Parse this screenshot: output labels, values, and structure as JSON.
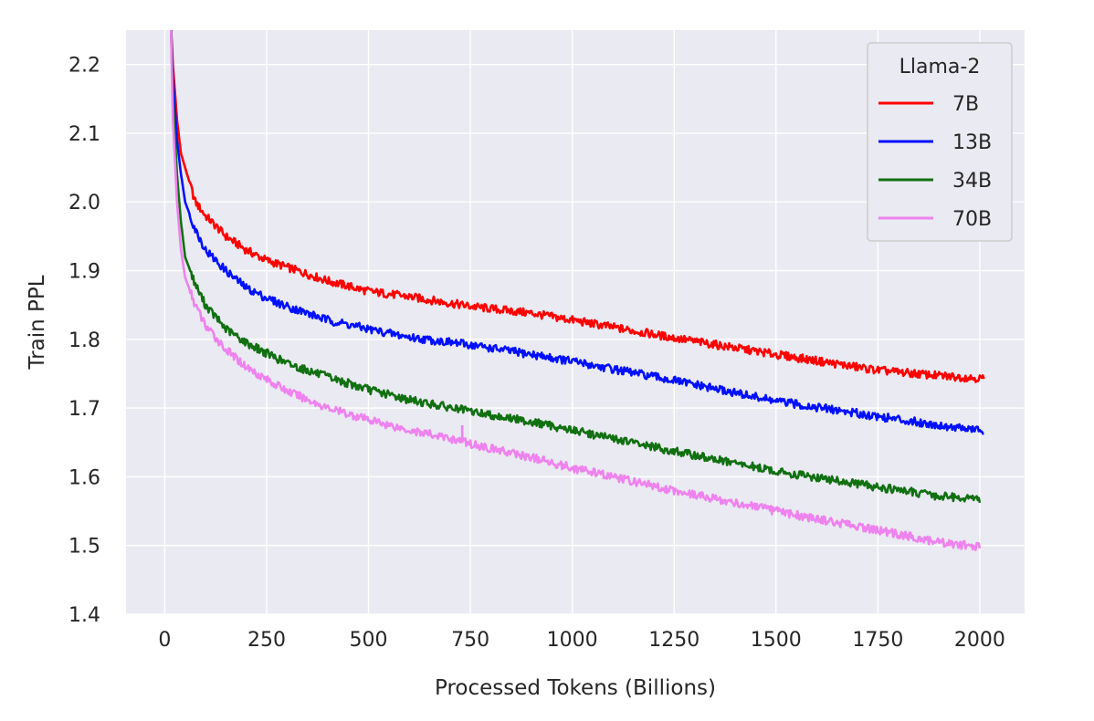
{
  "chart_data": {
    "type": "line",
    "title": "",
    "xlabel": "Processed Tokens (Billions)",
    "ylabel": "Train PPL",
    "xlim": [
      -95,
      2110
    ],
    "ylim": [
      1.4,
      2.25
    ],
    "xticks": [
      0,
      250,
      500,
      750,
      1000,
      1250,
      1500,
      1750,
      2000
    ],
    "yticks": [
      1.4,
      1.5,
      1.6,
      1.7,
      1.8,
      1.9,
      2.0,
      2.1,
      2.2
    ],
    "grid": true,
    "background": "#eaeaf2",
    "legend": {
      "title": "Llama-2",
      "position": "top-right"
    },
    "series": [
      {
        "name": "7B",
        "color": "#ff0000",
        "x": [
          15,
          20,
          30,
          40,
          50,
          75,
          100,
          150,
          200,
          250,
          300,
          400,
          500,
          600,
          750,
          900,
          1000,
          1250,
          1500,
          1750,
          1900,
          2010
        ],
        "y": [
          2.26,
          2.2,
          2.12,
          2.07,
          2.05,
          2.0,
          1.98,
          1.95,
          1.93,
          1.915,
          1.905,
          1.885,
          1.87,
          1.862,
          1.848,
          1.838,
          1.828,
          1.802,
          1.778,
          1.755,
          1.747,
          1.743
        ]
      },
      {
        "name": "13B",
        "color": "#0010ff",
        "x": [
          15,
          20,
          30,
          40,
          50,
          75,
          100,
          150,
          200,
          250,
          300,
          400,
          500,
          600,
          750,
          900,
          1000,
          1250,
          1500,
          1750,
          1900,
          2010
        ],
        "y": [
          2.26,
          2.18,
          2.09,
          2.04,
          2.0,
          1.96,
          1.93,
          1.9,
          1.875,
          1.86,
          1.848,
          1.828,
          1.815,
          1.803,
          1.792,
          1.778,
          1.768,
          1.74,
          1.71,
          1.688,
          1.675,
          1.667
        ]
      },
      {
        "name": "34B",
        "color": "#117011",
        "x": [
          15,
          20,
          30,
          40,
          50,
          75,
          100,
          150,
          200,
          250,
          300,
          400,
          500,
          600,
          750,
          900,
          1000,
          1250,
          1500,
          1750,
          1900,
          2000
        ],
        "y": [
          2.26,
          2.15,
          2.04,
          1.97,
          1.92,
          1.88,
          1.85,
          1.815,
          1.795,
          1.78,
          1.765,
          1.745,
          1.727,
          1.712,
          1.695,
          1.68,
          1.668,
          1.637,
          1.608,
          1.585,
          1.572,
          1.568
        ]
      },
      {
        "name": "70B",
        "color": "#ee82ee",
        "x": [
          15,
          20,
          30,
          40,
          50,
          75,
          100,
          150,
          200,
          250,
          300,
          400,
          500,
          600,
          730,
          750,
          900,
          1000,
          1250,
          1500,
          1750,
          1900,
          2000
        ],
        "y": [
          2.26,
          2.12,
          2.0,
          1.93,
          1.89,
          1.85,
          1.82,
          1.785,
          1.76,
          1.742,
          1.725,
          1.7,
          1.683,
          1.668,
          1.652,
          1.648,
          1.628,
          1.613,
          1.58,
          1.55,
          1.522,
          1.505,
          1.497
        ]
      }
    ]
  }
}
